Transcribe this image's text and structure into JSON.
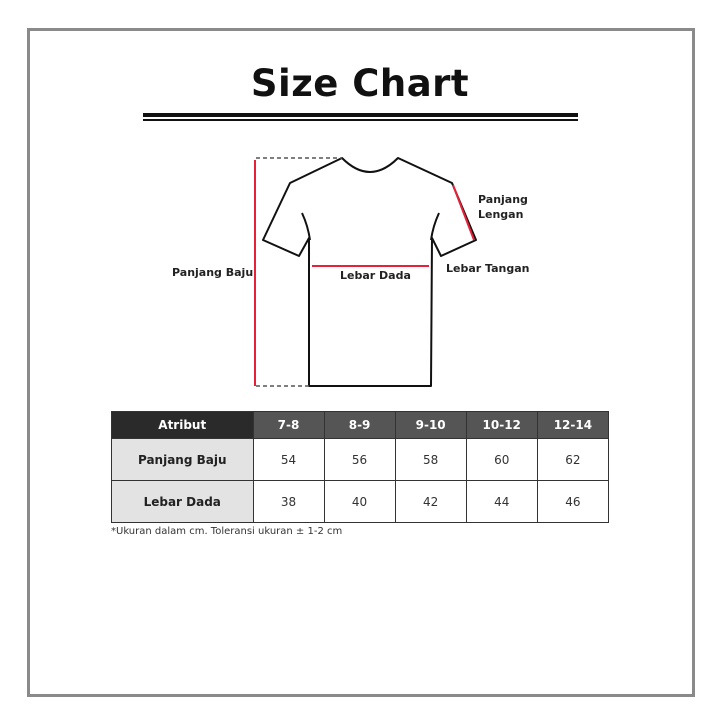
{
  "title": "Size Chart",
  "diagram": {
    "labels": {
      "length": "Panjang Baju",
      "chest": "Lebar Dada",
      "sleeve_length_line1": "Panjang",
      "sleeve_length_line2": "Lengan",
      "sleeve_width": "Lebar Tangan"
    },
    "measure_color": "#e8213a"
  },
  "table": {
    "header": [
      "Atribut",
      "7-8",
      "8-9",
      "9-10",
      "10-12",
      "12-14"
    ],
    "rows": [
      {
        "label": "Panjang Baju",
        "values": [
          "54",
          "56",
          "58",
          "60",
          "62"
        ]
      },
      {
        "label": "Lebar Dada",
        "values": [
          "38",
          "40",
          "42",
          "44",
          "46"
        ]
      }
    ]
  },
  "note": "*Ukuran dalam cm. Toleransi ukuran ± 1-2 cm"
}
